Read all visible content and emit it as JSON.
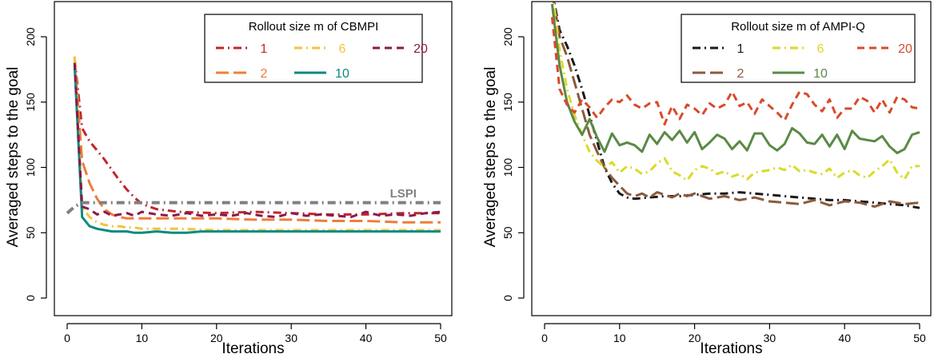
{
  "chart_data": [
    {
      "type": "line",
      "xlabel": "Iterations",
      "ylabel": "Averaged steps to the goal",
      "xlim": [
        0,
        50
      ],
      "ylim": [
        0,
        200
      ],
      "xticks": [
        "0",
        "10",
        "20",
        "30",
        "40",
        "50"
      ],
      "yticks": [
        "0",
        "50",
        "100",
        "150",
        "200"
      ],
      "legend": {
        "title": "Rollout size m of CBMPI",
        "placement": "top-right"
      },
      "annotations": [
        {
          "text": "LSPI",
          "x": 45,
          "y": 77,
          "color": "#808080"
        }
      ],
      "series": [
        {
          "name": "1",
          "color": "#c0262e",
          "dash": "dashdot",
          "x": [
            1,
            2,
            3,
            4,
            5,
            6,
            7,
            8,
            9,
            10,
            12,
            15,
            20,
            25,
            30,
            35,
            40,
            45,
            50
          ],
          "y": [
            183,
            130,
            120,
            113,
            106,
            98,
            90,
            83,
            77,
            72,
            68,
            66,
            65,
            66,
            65,
            64,
            64,
            65,
            65
          ]
        },
        {
          "name": "2",
          "color": "#f07c3a",
          "dash": "longdash",
          "x": [
            1,
            2,
            3,
            4,
            5,
            6,
            7,
            8,
            9,
            10,
            12,
            15,
            20,
            25,
            30,
            35,
            40,
            45,
            50
          ],
          "y": [
            184,
            105,
            88,
            76,
            68,
            64,
            62,
            61,
            61,
            61,
            61,
            61,
            61,
            60,
            60,
            59,
            59,
            58,
            58
          ]
        },
        {
          "name": "6",
          "color": "#f2c43c",
          "dash": "dashdot",
          "x": [
            1,
            2,
            3,
            4,
            5,
            6,
            7,
            8,
            9,
            10,
            12,
            15,
            20,
            25,
            30,
            35,
            40,
            45,
            50
          ],
          "y": [
            185,
            70,
            62,
            58,
            56,
            55,
            55,
            54,
            54,
            53,
            53,
            53,
            52,
            52,
            52,
            52,
            52,
            52,
            52
          ]
        },
        {
          "name": "10",
          "color": "#0b8a7e",
          "dash": "solid",
          "x": [
            1,
            2,
            3,
            4,
            5,
            6,
            7,
            8,
            9,
            10,
            12,
            14,
            16,
            18,
            20,
            25,
            30,
            35,
            40,
            45,
            50
          ],
          "y": [
            178,
            62,
            55,
            53,
            52,
            51,
            51,
            51,
            50,
            50,
            51,
            50,
            50,
            51,
            51,
            51,
            51,
            51,
            51,
            51,
            51
          ]
        },
        {
          "name": "20",
          "color": "#8b1a4a",
          "dash": "dash",
          "x": [
            1,
            2,
            3,
            4,
            5,
            6,
            7,
            8,
            9,
            10,
            12,
            14,
            16,
            18,
            20,
            22,
            24,
            26,
            28,
            30,
            32,
            34,
            36,
            38,
            40,
            42,
            44,
            46,
            48,
            50
          ],
          "y": [
            180,
            70,
            68,
            64,
            66,
            63,
            64,
            65,
            63,
            66,
            64,
            63,
            65,
            63,
            64,
            63,
            65,
            63,
            62,
            65,
            63,
            64,
            63,
            62,
            66,
            63,
            64,
            63,
            65,
            66
          ]
        },
        {
          "name": "LSPI",
          "color": "#808080",
          "dash": "dashdot",
          "x": [
            0,
            1,
            2,
            3,
            4,
            5,
            10,
            20,
            30,
            40,
            50
          ],
          "y": [
            65,
            70,
            73,
            73,
            73,
            73,
            73,
            73,
            73,
            73,
            73
          ]
        }
      ]
    },
    {
      "type": "line",
      "xlabel": "Iterations",
      "ylabel": "Averaged steps to the goal",
      "xlim": [
        0,
        50
      ],
      "ylim": [
        0,
        200
      ],
      "xticks": [
        "0",
        "10",
        "20",
        "30",
        "40",
        "50"
      ],
      "yticks": [
        "0",
        "50",
        "100",
        "150",
        "200"
      ],
      "legend": {
        "title": "Rollout size m of AMPI-Q",
        "placement": "top-right"
      },
      "series": [
        {
          "name": "1",
          "color": "#1a1a1a",
          "dash": "dashdot",
          "x": [
            1,
            2,
            3,
            4,
            5,
            6,
            7,
            8,
            9,
            10,
            11,
            12,
            14,
            16,
            18,
            20,
            22,
            24,
            26,
            28,
            30,
            32,
            34,
            36,
            38,
            40,
            42,
            44,
            46,
            48,
            50
          ],
          "y": [
            235,
            205,
            193,
            178,
            160,
            140,
            120,
            100,
            88,
            80,
            77,
            76,
            77,
            78,
            78,
            79,
            80,
            80,
            81,
            80,
            79,
            78,
            77,
            76,
            75,
            75,
            74,
            73,
            72,
            71,
            69
          ]
        },
        {
          "name": "2",
          "color": "#8b5a3c",
          "dash": "longdash",
          "x": [
            1,
            2,
            3,
            4,
            5,
            6,
            7,
            8,
            9,
            10,
            11,
            12,
            13,
            14,
            15,
            16,
            17,
            18,
            19,
            20,
            22,
            24,
            26,
            28,
            30,
            32,
            34,
            36,
            38,
            40,
            42,
            44,
            46,
            48,
            50
          ],
          "y": [
            235,
            200,
            185,
            165,
            145,
            125,
            112,
            100,
            92,
            86,
            80,
            78,
            80,
            77,
            81,
            79,
            77,
            80,
            78,
            80,
            76,
            78,
            75,
            77,
            74,
            73,
            72,
            75,
            71,
            74,
            73,
            70,
            74,
            72,
            73
          ]
        },
        {
          "name": "6",
          "color": "#dada2a",
          "dash": "dashdot",
          "x": [
            1,
            2,
            3,
            4,
            5,
            6,
            7,
            8,
            9,
            10,
            11,
            12,
            13,
            14,
            15,
            16,
            17,
            18,
            19,
            20,
            21,
            22,
            23,
            24,
            25,
            26,
            27,
            28,
            29,
            30,
            31,
            32,
            33,
            34,
            35,
            36,
            37,
            38,
            39,
            40,
            41,
            42,
            43,
            44,
            45,
            46,
            47,
            48,
            49,
            50
          ],
          "y": [
            235,
            190,
            160,
            140,
            125,
            112,
            105,
            100,
            104,
            96,
            101,
            99,
            95,
            97,
            103,
            107,
            97,
            94,
            90,
            98,
            101,
            99,
            95,
            97,
            93,
            95,
            91,
            96,
            97,
            98,
            100,
            98,
            102,
            97,
            98,
            96,
            95,
            99,
            92,
            96,
            98,
            94,
            92,
            97,
            101,
            106,
            96,
            91,
            101,
            101
          ]
        },
        {
          "name": "10",
          "color": "#5a8a45",
          "dash": "solid",
          "x": [
            1,
            2,
            3,
            4,
            5,
            6,
            7,
            8,
            9,
            10,
            11,
            12,
            13,
            14,
            15,
            16,
            17,
            18,
            19,
            20,
            21,
            22,
            23,
            24,
            25,
            26,
            27,
            28,
            29,
            30,
            31,
            32,
            33,
            34,
            35,
            36,
            37,
            38,
            39,
            40,
            41,
            42,
            43,
            44,
            45,
            46,
            47,
            48,
            49,
            50
          ],
          "y": [
            225,
            178,
            150,
            135,
            125,
            137,
            123,
            112,
            126,
            117,
            119,
            117,
            112,
            125,
            118,
            127,
            121,
            128,
            119,
            127,
            114,
            119,
            125,
            122,
            114,
            120,
            113,
            126,
            126,
            117,
            113,
            118,
            130,
            126,
            119,
            118,
            125,
            116,
            125,
            114,
            128,
            122,
            121,
            120,
            124,
            116,
            111,
            114,
            125,
            127
          ]
        },
        {
          "name": "20",
          "color": "#d94a2a",
          "dash": "dash",
          "x": [
            1,
            2,
            3,
            4,
            5,
            6,
            7,
            8,
            9,
            10,
            11,
            12,
            13,
            14,
            15,
            16,
            17,
            18,
            19,
            20,
            21,
            22,
            23,
            24,
            25,
            26,
            27,
            28,
            29,
            30,
            31,
            32,
            33,
            34,
            35,
            36,
            37,
            38,
            39,
            40,
            41,
            42,
            43,
            44,
            45,
            46,
            47,
            48,
            49,
            50
          ],
          "y": [
            215,
            160,
            148,
            142,
            152,
            146,
            138,
            146,
            152,
            150,
            155,
            148,
            145,
            149,
            150,
            133,
            147,
            137,
            148,
            145,
            140,
            149,
            145,
            148,
            158,
            147,
            150,
            141,
            152,
            147,
            142,
            136,
            148,
            158,
            156,
            148,
            143,
            152,
            138,
            145,
            145,
            154,
            151,
            142,
            152,
            142,
            154,
            152,
            146,
            145
          ]
        }
      ]
    }
  ]
}
